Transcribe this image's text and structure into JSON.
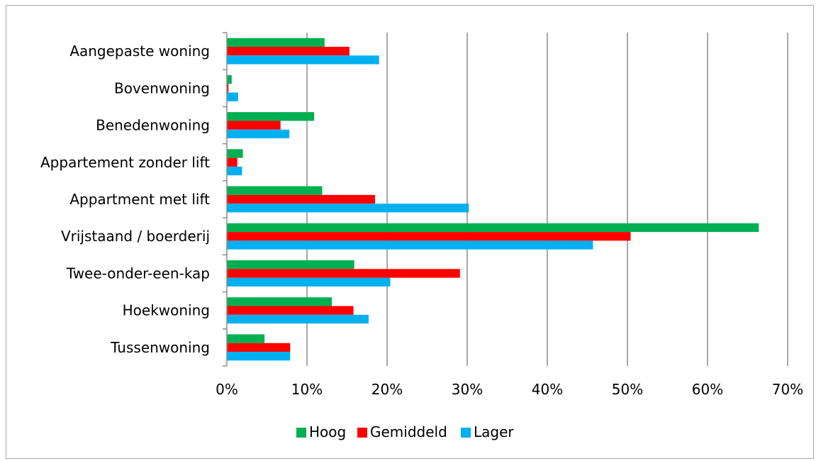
{
  "chart_data": {
    "type": "bar",
    "orientation": "horizontal",
    "categories": [
      "Aangepaste woning",
      "Bovenwoning",
      "Benedenwoning",
      "Appartement zonder lift",
      "Appartment met lift",
      "Vrijstaand / boerderij",
      "Twee-onder-een-kap",
      "Hoekwoning",
      "Tussenwoning"
    ],
    "series": [
      {
        "name": "Hoog",
        "color": "#00b050",
        "values": [
          12.2,
          0.6,
          10.9,
          2.0,
          11.9,
          66.4,
          15.9,
          13.1,
          4.7
        ]
      },
      {
        "name": "Gemiddeld",
        "color": "#ff0000",
        "values": [
          15.3,
          0.2,
          6.7,
          1.3,
          18.5,
          50.4,
          29.1,
          15.8,
          7.9
        ]
      },
      {
        "name": "Lager",
        "color": "#00b0f0",
        "values": [
          19.0,
          1.4,
          7.8,
          1.9,
          30.2,
          45.7,
          20.4,
          17.7,
          7.9
        ]
      }
    ],
    "xlim": [
      0,
      70
    ],
    "xticks": [
      "0%",
      "10%",
      "20%",
      "30%",
      "40%",
      "50%",
      "60%",
      "70%"
    ],
    "grid": true,
    "legend_position": "bottom"
  }
}
